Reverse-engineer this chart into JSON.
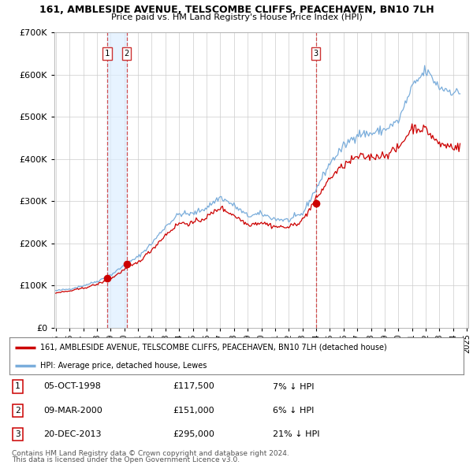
{
  "title": "161, AMBLESIDE AVENUE, TELSCOMBE CLIFFS, PEACEHAVEN, BN10 7LH",
  "subtitle": "Price paid vs. HM Land Registry's House Price Index (HPI)",
  "ylim": [
    0,
    700000
  ],
  "yticks": [
    0,
    100000,
    200000,
    300000,
    400000,
    500000,
    600000,
    700000
  ],
  "sale_year_floats": [
    1998.75,
    2000.17,
    2013.97
  ],
  "sale_prices": [
    117500,
    151000,
    295000
  ],
  "sale_labels": [
    "1",
    "2",
    "3"
  ],
  "sale_info": [
    [
      "05-OCT-1998",
      "£117,500",
      "7% ↓ HPI"
    ],
    [
      "09-MAR-2000",
      "£151,000",
      "6% ↓ HPI"
    ],
    [
      "20-DEC-2013",
      "£295,000",
      "21% ↓ HPI"
    ]
  ],
  "legend_line1": "161, AMBLESIDE AVENUE, TELSCOMBE CLIFFS, PEACEHAVEN, BN10 7LH (detached house)",
  "legend_line2": "HPI: Average price, detached house, Lewes",
  "footnote1": "Contains HM Land Registry data © Crown copyright and database right 2024.",
  "footnote2": "This data is licensed under the Open Government Licence v3.0.",
  "line_color_red": "#cc0000",
  "line_color_blue": "#7aaddb",
  "marker_color_red": "#cc0000",
  "vline_color": "#cc3333",
  "shade_color": "#ddeeff",
  "bg_color": "#ffffff",
  "grid_color": "#cccccc",
  "xlim_start": 1994.9,
  "xlim_end": 2025.1
}
